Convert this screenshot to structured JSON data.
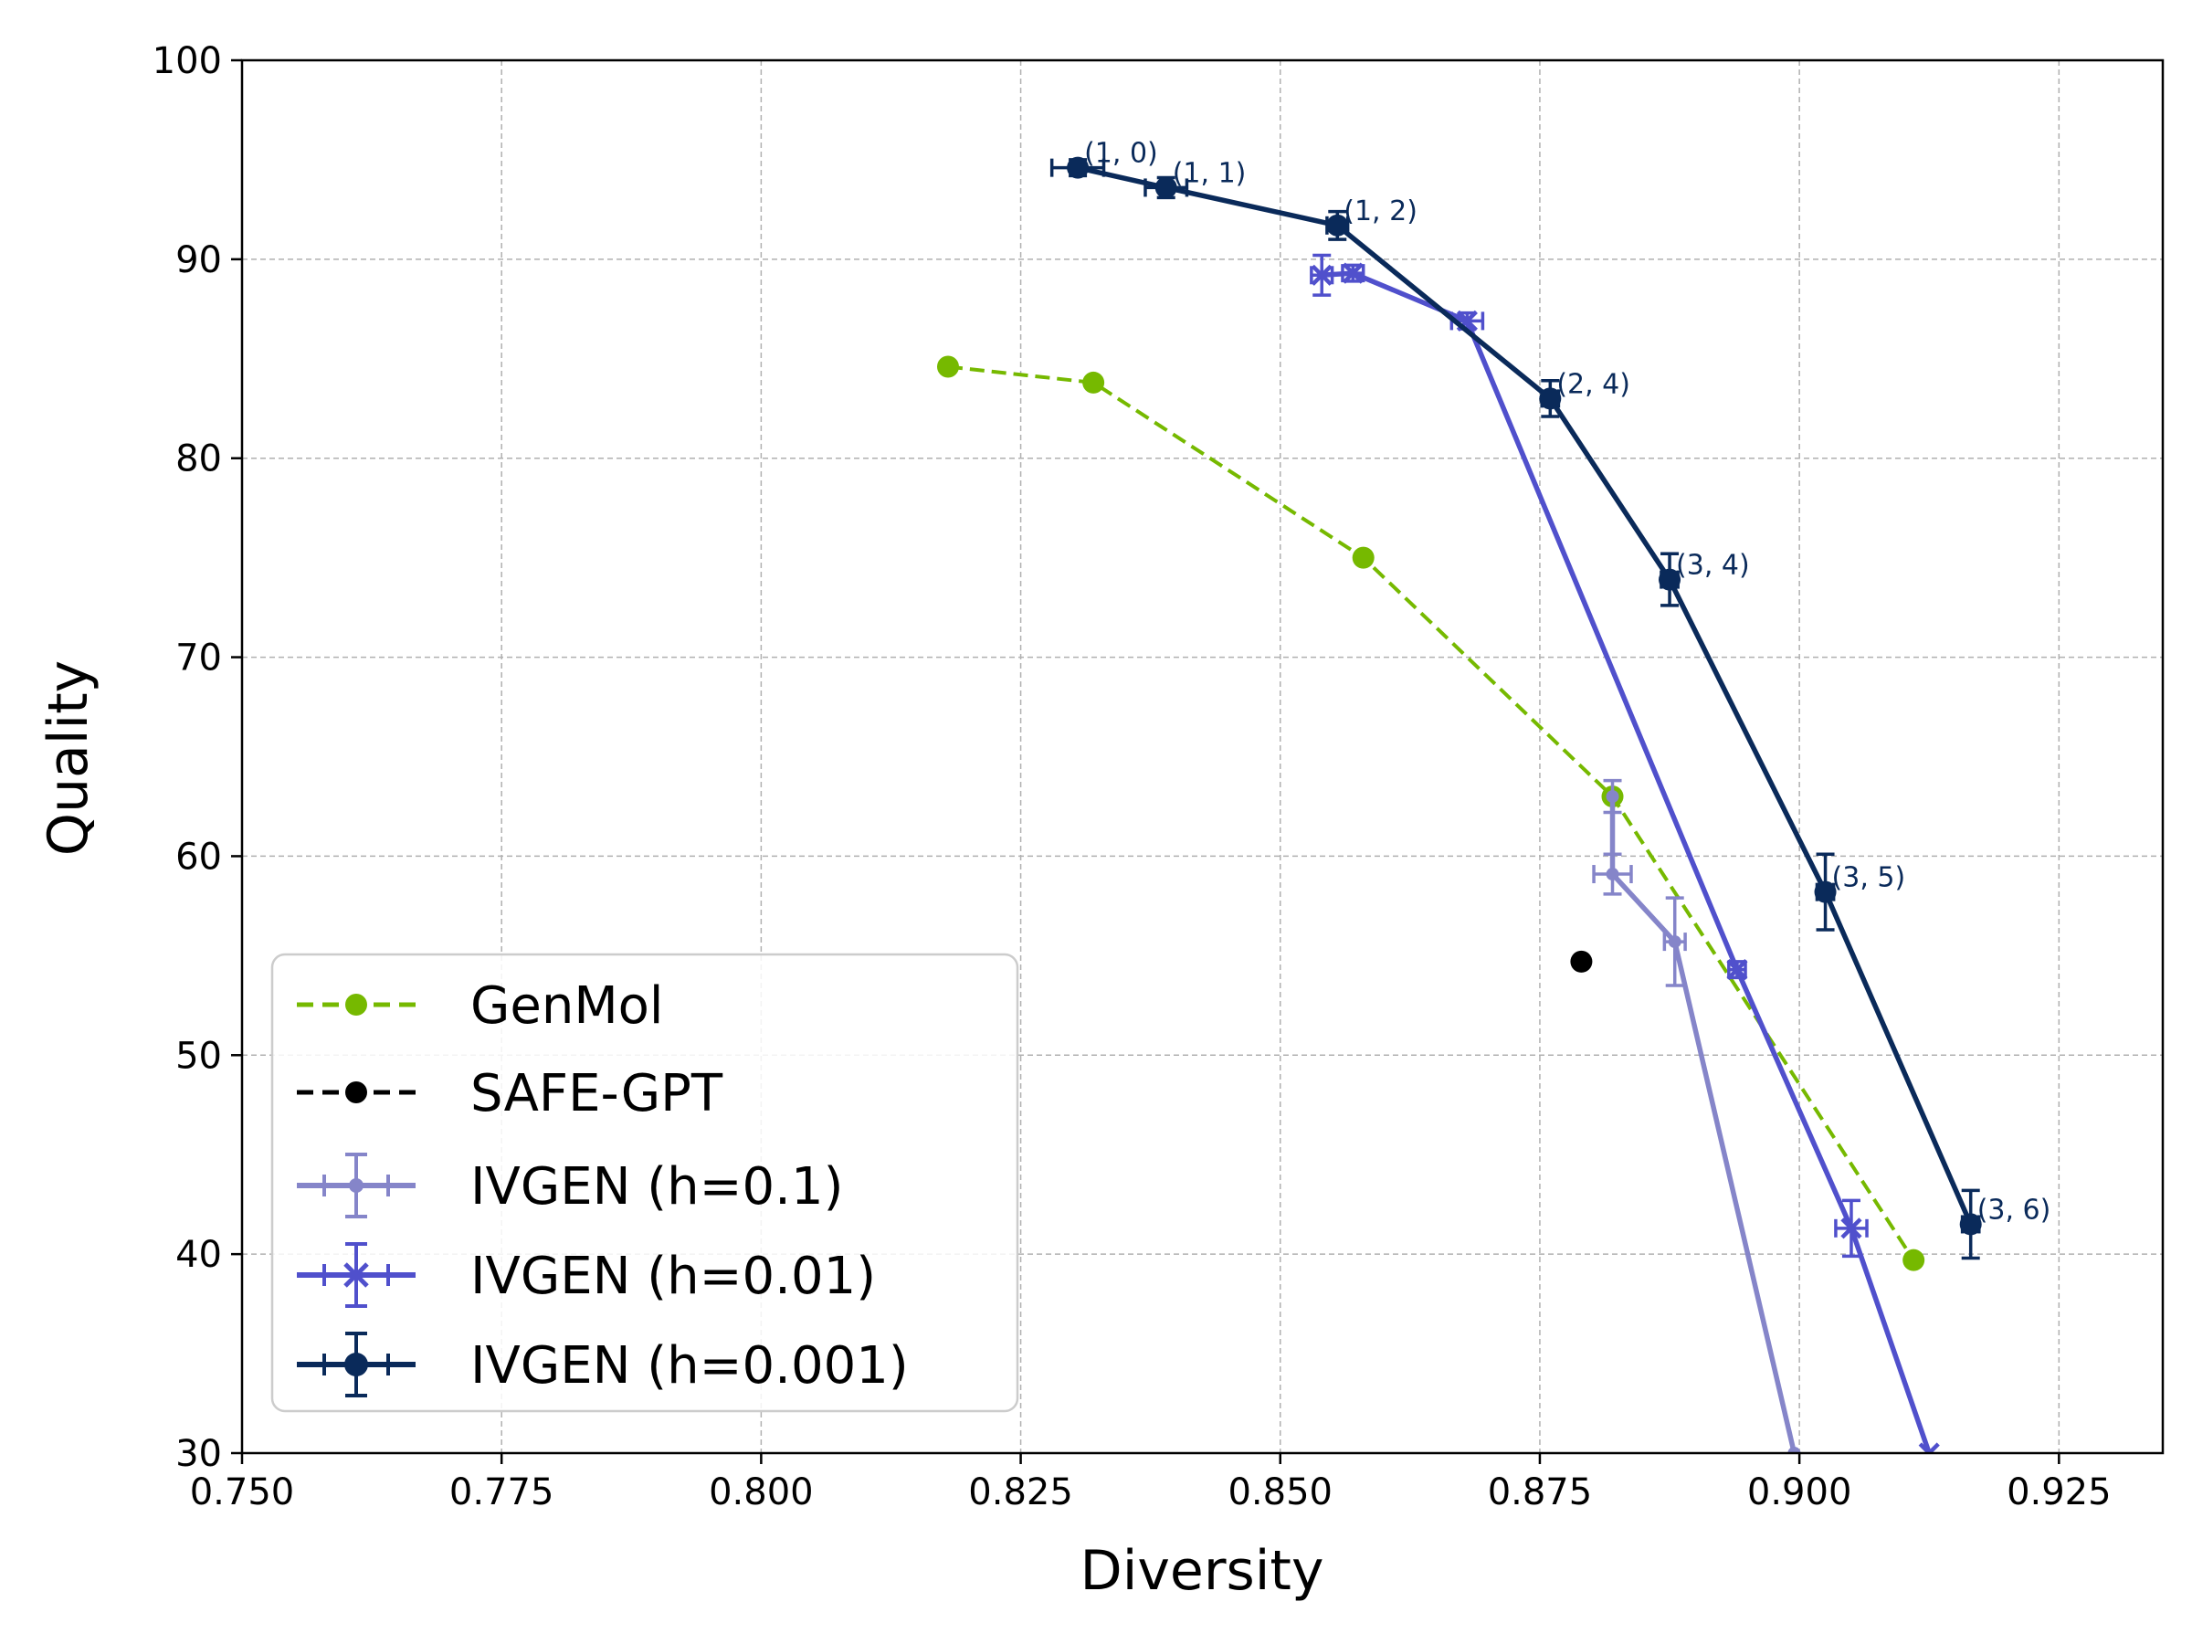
{
  "chart_data": {
    "type": "line",
    "title": "",
    "xlabel": "Diversity",
    "ylabel": "Quality",
    "xlim": [
      0.75,
      0.935
    ],
    "ylim": [
      30,
      100
    ],
    "xticks": [
      0.75,
      0.775,
      0.8,
      0.825,
      0.85,
      0.875,
      0.9,
      0.925
    ],
    "xtick_labels": [
      "0.750",
      "0.775",
      "0.800",
      "0.825",
      "0.850",
      "0.875",
      "0.900",
      "0.925"
    ],
    "yticks": [
      30,
      40,
      50,
      60,
      70,
      80,
      90,
      100
    ],
    "ytick_labels": [
      "30",
      "40",
      "50",
      "60",
      "70",
      "80",
      "90",
      "100"
    ],
    "grid": true,
    "legend_position": "lower-left",
    "series": [
      {
        "id": "genmol",
        "name": "GenMol",
        "color": "#76b900",
        "linestyle": "dashed",
        "marker": "circle",
        "x": [
          0.818,
          0.832,
          0.858,
          0.882,
          0.911
        ],
        "y": [
          84.6,
          83.8,
          75.0,
          63.0,
          39.7
        ]
      },
      {
        "id": "safe-gpt",
        "name": "SAFE-GPT",
        "color": "#000000",
        "linestyle": "dashed",
        "marker": "circle",
        "x": [
          0.879
        ],
        "y": [
          54.7
        ]
      },
      {
        "id": "ivgen-h01",
        "name": "IVGEN (h=0.1)",
        "color": "#8585c9",
        "linestyle": "solid",
        "marker": "point",
        "x": [
          0.882,
          0.882,
          0.888,
          0.8995
        ],
        "y": [
          63.0,
          59.1,
          55.7,
          30.0
        ],
        "xerr": [
          0,
          0.0018,
          0.001,
          0
        ],
        "yerr": [
          0.8,
          1.0,
          2.2,
          0
        ]
      },
      {
        "id": "ivgen-h001",
        "name": "IVGEN (h=0.01)",
        "color": "#5050cc",
        "linestyle": "solid",
        "marker": "x",
        "x": [
          0.854,
          0.857,
          0.868,
          0.894,
          0.905,
          0.9125
        ],
        "y": [
          89.2,
          89.3,
          86.9,
          54.3,
          41.3,
          30.0
        ],
        "xerr": [
          0.001,
          0.001,
          0.0015,
          0.0008,
          0.0015,
          0
        ],
        "yerr": [
          1.0,
          0.4,
          0.4,
          0.4,
          1.4,
          0
        ]
      },
      {
        "id": "ivgen-h0001",
        "name": "IVGEN (h=0.001)",
        "color": "#0a2a5a",
        "linestyle": "solid",
        "marker": "circle",
        "x": [
          0.8305,
          0.839,
          0.8555,
          0.876,
          0.8875,
          0.9025,
          0.9165
        ],
        "y": [
          94.6,
          93.6,
          91.7,
          83.0,
          73.9,
          58.2,
          41.5
        ],
        "xerr": [
          0.0025,
          0.002,
          0.001,
          0.0008,
          0.0008,
          0.0008,
          0.0008
        ],
        "yerr": [
          0.4,
          0.5,
          0.7,
          0.9,
          1.3,
          1.9,
          1.7
        ],
        "point_labels": [
          "(1, 0)",
          "(1, 1)",
          "(1, 2)",
          "(2, 4)",
          "(3, 4)",
          "(3, 5)",
          "(3, 6)"
        ]
      }
    ]
  }
}
